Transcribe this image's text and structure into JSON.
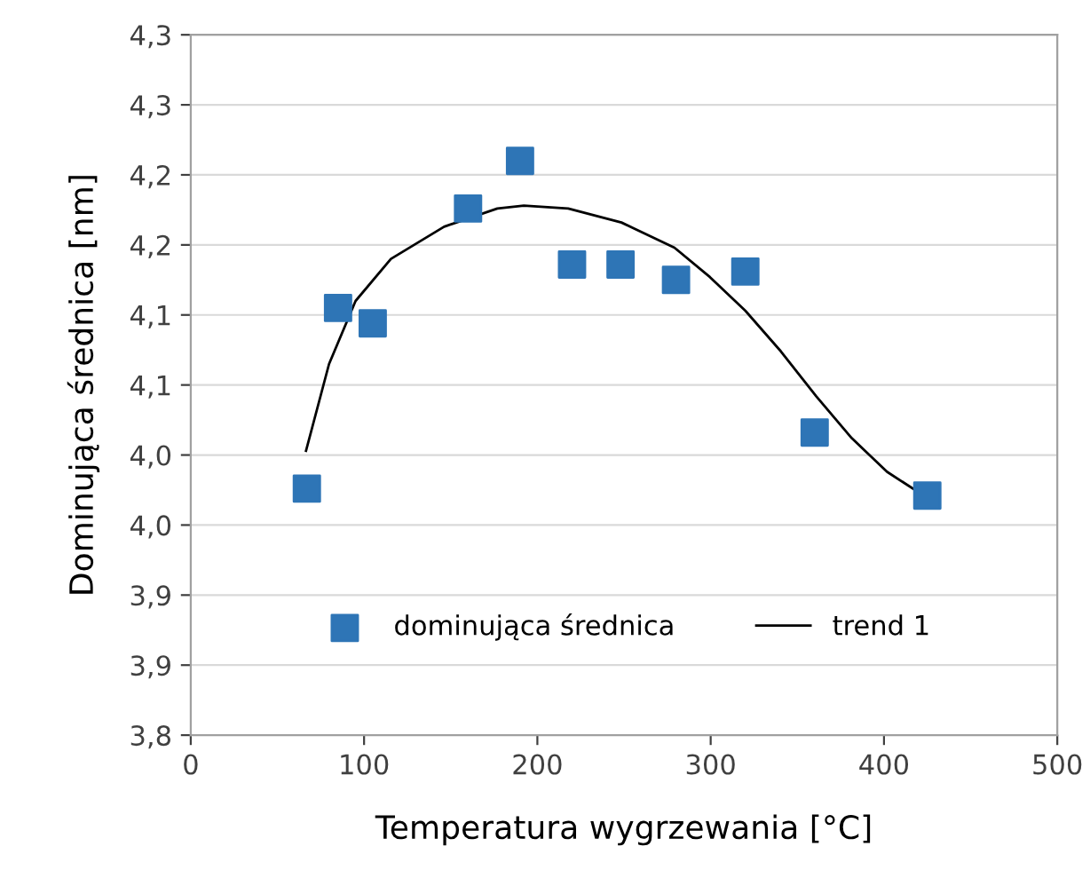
{
  "chart_data": {
    "type": "scatter",
    "xlabel": "Temperatura wygrzewania [°C]",
    "ylabel": "Dominująca średnica [nm]",
    "xlim": [
      0,
      500
    ],
    "xticks": [
      0,
      100,
      200,
      300,
      400,
      500
    ],
    "ylim": [
      3.8,
      4.3
    ],
    "yticks": [
      {
        "value": 3.8,
        "label": "3,8"
      },
      {
        "value": 3.85,
        "label": "3,9"
      },
      {
        "value": 3.9,
        "label": "3,9"
      },
      {
        "value": 3.95,
        "label": "4,0"
      },
      {
        "value": 4.0,
        "label": "4,0"
      },
      {
        "value": 4.05,
        "label": "4,1"
      },
      {
        "value": 4.1,
        "label": "4,1"
      },
      {
        "value": 4.15,
        "label": "4,2"
      },
      {
        "value": 4.2,
        "label": "4,2"
      },
      {
        "value": 4.25,
        "label": "4,3"
      },
      {
        "value": 4.3,
        "label": "4,3"
      }
    ],
    "grid": "y",
    "legend": "bottom",
    "series": [
      {
        "name": "dominująca średnica",
        "marker": "square",
        "color": "#2e75b6",
        "x": [
          67,
          85,
          105,
          160,
          190,
          220,
          248,
          280,
          320,
          360,
          425
        ],
        "values": [
          3.976,
          4.105,
          4.094,
          4.176,
          4.21,
          4.136,
          4.136,
          4.125,
          4.131,
          4.016,
          3.971
        ]
      },
      {
        "name": "trend 1",
        "type": "line",
        "marker": "none",
        "line_style": "solid",
        "color": "#000000",
        "x": [
          66.5,
          79.8,
          95.1,
          115.5,
          146.2,
          176.9,
          192.2,
          217.8,
          248.5,
          279.1,
          299.6,
          320,
          340.5,
          360.9,
          381.4,
          401.8,
          425.4
        ],
        "values": [
          4.003,
          4.065,
          4.11,
          4.14,
          4.163,
          4.176,
          4.178,
          4.176,
          4.166,
          4.148,
          4.127,
          4.103,
          4.074,
          4.042,
          4.012,
          3.988,
          3.969
        ]
      }
    ]
  }
}
